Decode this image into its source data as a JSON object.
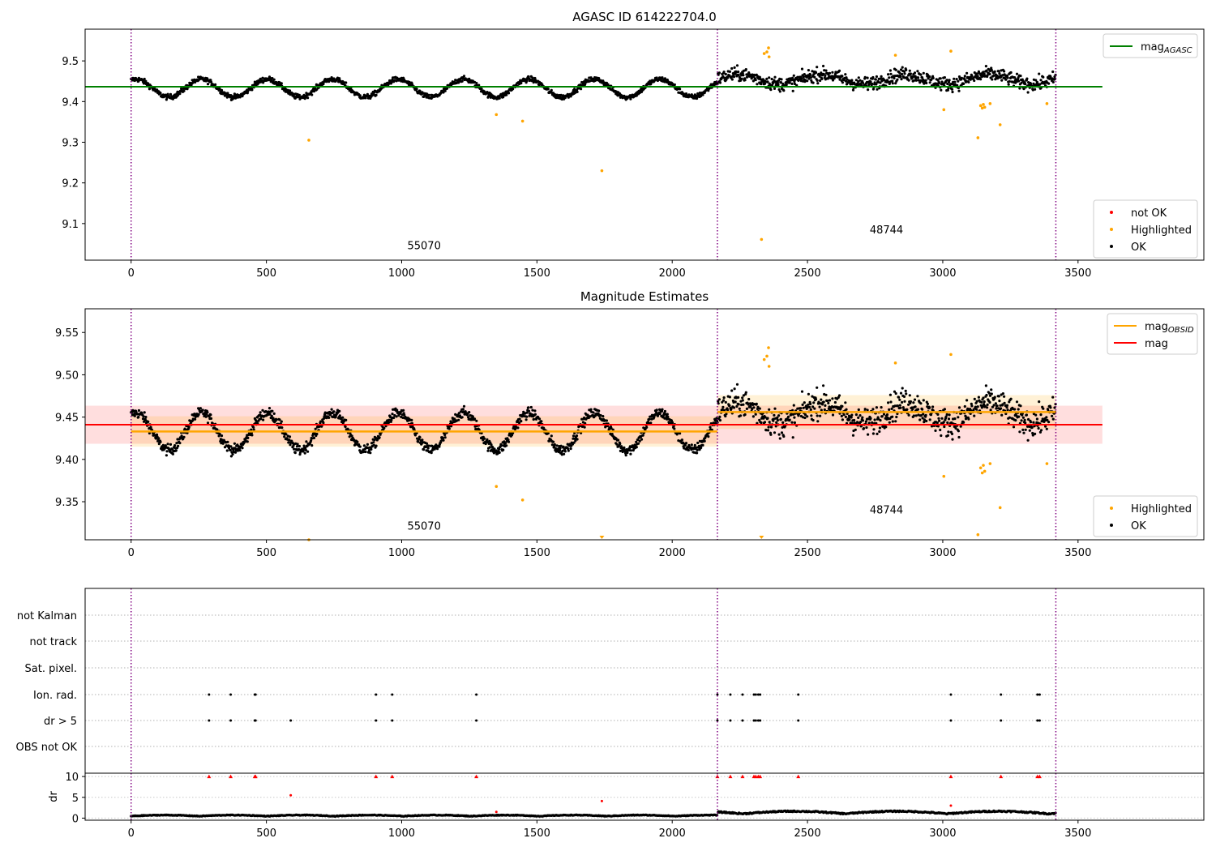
{
  "figure": {
    "title_top": "AGASC ID 614222704.0",
    "title_middle": "Magnitude Estimates"
  },
  "chart_data": [
    {
      "type": "scatter",
      "title": "AGASC ID 614222704.0",
      "xlim": [
        -170,
        3965
      ],
      "ylim": [
        9.01,
        9.578
      ],
      "x_ticks": [
        0,
        500,
        1000,
        1500,
        2000,
        2500,
        3000,
        3500
      ],
      "y_ticks": [
        9.1,
        9.2,
        9.3,
        9.4,
        9.5
      ],
      "obsid_boundaries": [
        0,
        2167,
        3418
      ],
      "obsid_labels": [
        {
          "text": "55070",
          "x": 1083,
          "y": 9.037
        },
        {
          "text": "48744",
          "x": 2792,
          "y": 9.076
        }
      ],
      "lines": [
        {
          "name": "mag_AGASC",
          "y": 9.4365,
          "x_range": [
            -170,
            3590
          ],
          "color": "#008000"
        }
      ],
      "series": [
        {
          "name": "not OK",
          "color": "#ff0000",
          "points": []
        },
        {
          "name": "Highlighted",
          "color": "#ffa500",
          "points": [
            [
              657,
              9.305
            ],
            [
              1350,
              9.368
            ],
            [
              1447,
              9.352
            ],
            [
              1740,
              9.23
            ],
            [
              2330,
              9.061
            ],
            [
              2340,
              9.518
            ],
            [
              2350,
              9.522
            ],
            [
              2356,
              9.532
            ],
            [
              2358,
              9.51
            ],
            [
              2825,
              9.514
            ],
            [
              3004,
              9.38
            ],
            [
              3030,
              9.524
            ],
            [
              3130,
              9.311
            ],
            [
              3140,
              9.39
            ],
            [
              3146,
              9.384
            ],
            [
              3150,
              9.393
            ],
            [
              3155,
              9.386
            ],
            [
              3175,
              9.395
            ],
            [
              3212,
              9.343
            ],
            [
              3385,
              9.395
            ]
          ]
        },
        {
          "name": "OK",
          "color": "#000000",
          "generated": "dense time series across both observations"
        }
      ],
      "legend": [
        {
          "label": "not OK",
          "color": "#ff0000"
        },
        {
          "label": "Highlighted",
          "color": "#ffa500"
        },
        {
          "label": "OK",
          "color": "#000000"
        }
      ],
      "legend_lines": [
        {
          "label": "mag",
          "sub": "AGASC",
          "color": "#008000"
        }
      ]
    },
    {
      "type": "scatter",
      "title": "Magnitude Estimates",
      "xlim": [
        -170,
        3965
      ],
      "ylim": [
        9.305,
        9.578
      ],
      "x_ticks": [
        0,
        500,
        1000,
        1500,
        2000,
        2500,
        3000,
        3500
      ],
      "y_ticks": [
        9.35,
        9.4,
        9.45,
        9.5,
        9.55
      ],
      "obsid_boundaries": [
        0,
        2167,
        3418
      ],
      "obsid_labels": [
        {
          "text": "55070",
          "x": 1083,
          "y": 9.317
        },
        {
          "text": "48744",
          "x": 2792,
          "y": 9.336
        }
      ],
      "bands": [
        {
          "name": "mag",
          "x_range": [
            -170,
            3590
          ],
          "center": 9.441,
          "half_width": 0.0225,
          "color": "#ff0000"
        },
        {
          "name": "mag_OBSID 55070",
          "x_range": [
            0,
            2167
          ],
          "center": 9.433,
          "half_width": 0.018,
          "color": "#ffa500"
        },
        {
          "name": "mag_OBSID 48744",
          "x_range": [
            2167,
            3418
          ],
          "center": 9.456,
          "half_width": 0.02,
          "color": "#ffa500"
        }
      ],
      "legend_lines": [
        {
          "label": "mag",
          "sub": "OBSID",
          "color": "#ffa500"
        },
        {
          "label": "mag",
          "sub": "",
          "color": "#ff0000"
        }
      ],
      "legend": [
        {
          "label": "Highlighted",
          "color": "#ffa500"
        },
        {
          "label": "OK",
          "color": "#000000"
        }
      ]
    },
    {
      "type": "scatter",
      "title": "",
      "flag_rows": [
        "not Kalman",
        "not track",
        "Sat. pixel.",
        "Ion. rad.",
        "dr > 5",
        "OBS not OK"
      ],
      "flag_points": {
        "Ion. rad.": [
          288,
          368,
          457,
          460,
          905,
          965,
          1276,
          2167,
          2215,
          2260,
          2302,
          2309,
          2318,
          2325,
          2466,
          3030,
          3215,
          3350,
          3358
        ],
        "dr > 5": [
          288,
          368,
          457,
          460,
          590,
          905,
          965,
          1276,
          2167,
          2215,
          2260,
          2302,
          2309,
          2318,
          2325,
          2466,
          3030,
          3215,
          3350,
          3358
        ]
      },
      "dr_panel": {
        "ylabel": "dr",
        "y_ticks": [
          0,
          5,
          10
        ],
        "ylim": [
          -0.5,
          10.8
        ],
        "capped_points": [
          288,
          368,
          457,
          460,
          905,
          965,
          1276,
          2167,
          2215,
          2260,
          2302,
          2309,
          2318,
          2325,
          2466,
          3030,
          3215,
          3350,
          3358
        ],
        "outliers": [
          [
            590,
            5.5
          ],
          [
            1740,
            4.1
          ],
          [
            3030,
            3.0
          ],
          [
            1350,
            1.5
          ]
        ]
      },
      "x_ticks": [
        0,
        500,
        1000,
        1500,
        2000,
        2500,
        3000,
        3500
      ],
      "xlim": [
        -170,
        3965
      ]
    }
  ]
}
